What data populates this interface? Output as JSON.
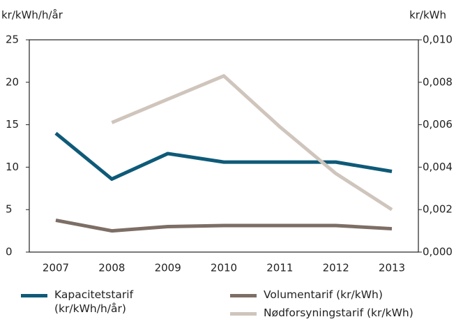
{
  "chart_data": {
    "type": "line",
    "ylabel": "kr/kWh/h/år",
    "y2label": "kr/kWh",
    "categories": [
      "2007",
      "2008",
      "2009",
      "2010",
      "2011",
      "2012",
      "2013"
    ],
    "series": [
      {
        "name": "Kapacitetstarif (kr/kWh/h/år)",
        "color": "#0e5a78",
        "values": [
          14,
          8.6,
          11.6,
          10.6,
          10.6,
          10.6,
          9.5
        ]
      },
      {
        "name": "Volumentarif (kr/kWh)",
        "color": "#7d6e66",
        "axis": "y2",
        "values": [
          0.0015,
          0.001,
          0.0012,
          0.00125,
          0.00125,
          0.00125,
          0.0011
        ]
      },
      {
        "name": "Nødforsyningstarif (kr/kWh)",
        "color": "#cfc5bc",
        "axis": "y2",
        "values": [
          null,
          0.0061,
          0.0072,
          0.0083,
          0.0059,
          0.0037,
          0.002
        ]
      }
    ],
    "ylim": [
      0,
      25
    ],
    "yticks": [
      0,
      5,
      10,
      15,
      20,
      25
    ],
    "y2lim": [
      0,
      0.01
    ],
    "y2ticks": [
      {
        "value": 0,
        "label": "0,000"
      },
      {
        "value": 0.002,
        "label": "0,002"
      },
      {
        "value": 0.004,
        "label": "0,004"
      },
      {
        "value": 0.006,
        "label": "0,006"
      },
      {
        "value": 0.008,
        "label": "0,008"
      },
      {
        "value": 0.01,
        "label": "0,010"
      }
    ]
  }
}
